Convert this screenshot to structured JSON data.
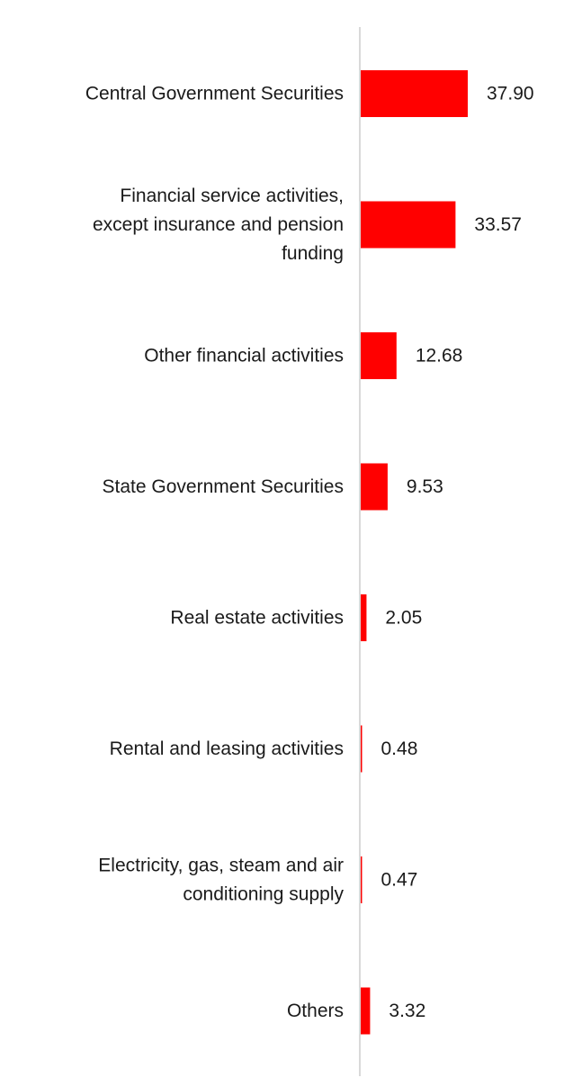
{
  "chart_data": {
    "type": "bar",
    "orientation": "horizontal",
    "categories": [
      "Central Government Securities",
      "Financial service activities, except insurance and pension funding",
      "Other financial activities",
      "State Government Securities",
      "Real estate activities",
      "Rental and leasing activities",
      "Electricity, gas, steam and air conditioning supply",
      "Others"
    ],
    "category_lines": [
      [
        "Central Government Securities"
      ],
      [
        "Financial service activities,",
        "except insurance and pension",
        "funding"
      ],
      [
        "Other financial activities"
      ],
      [
        "State Government Securities"
      ],
      [
        "Real estate activities"
      ],
      [
        "Rental and leasing activities"
      ],
      [
        "Electricity, gas, steam and air",
        "conditioning supply"
      ],
      [
        "Others"
      ]
    ],
    "values": [
      37.9,
      33.57,
      12.68,
      9.53,
      2.05,
      0.48,
      0.47,
      3.32
    ],
    "value_labels": [
      "37.90",
      "33.57",
      "12.68",
      "9.53",
      "2.05",
      "0.48",
      "0.47",
      "3.32"
    ],
    "title": "",
    "xlabel": "",
    "ylabel": "",
    "xlim": [
      0,
      75
    ],
    "grid": false,
    "legend": "none",
    "colors": {
      "bar": "#ff0000",
      "axis": "#d9d9d9",
      "text": "#1a1a1a"
    }
  }
}
